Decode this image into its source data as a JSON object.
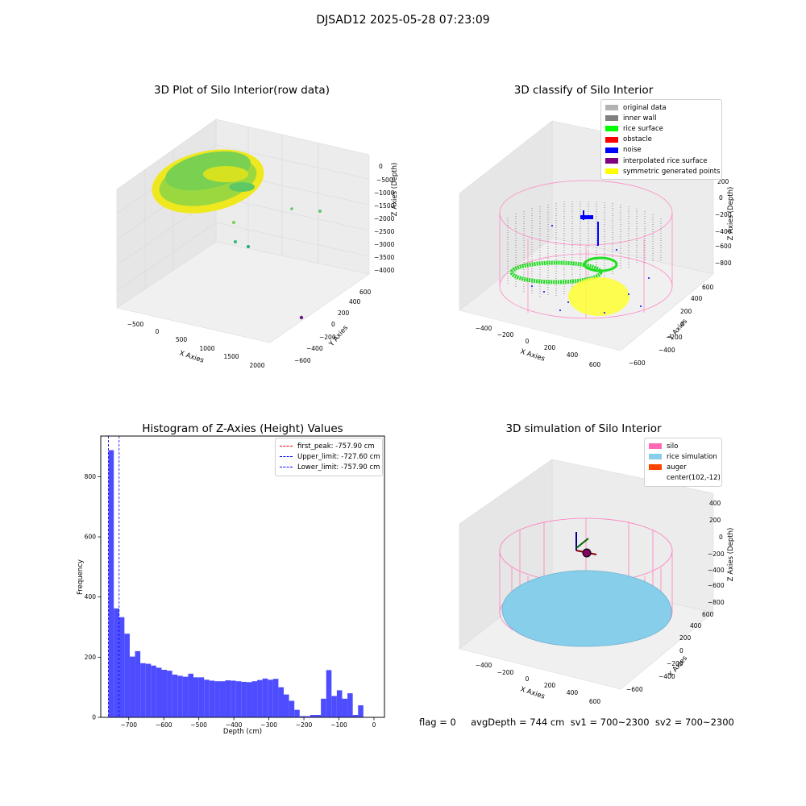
{
  "figure_title": "DJSAD12 2025-05-28 07:23:09",
  "footer": "flag = 0     avgDepth = 744 cm  sv1 = 700~2300  sv2 = 700~2300",
  "colors": {
    "surface_green": "#7ad151",
    "surface_yellow": "#fde725",
    "surface_teal": "#22a884",
    "gray_original": "#b3b3b3",
    "gray_wall": "#808080",
    "rice_surface": "#00ff00",
    "obstacle": "#ff0000",
    "noise": "#0000ff",
    "interpolated": "#800080",
    "symmetric": "#ffff00",
    "hist_bar": "#4d4dff",
    "first_peak": "#ff0000",
    "limit_line": "#0000ff",
    "silo": "#ff69b4",
    "rice_sim": "#87ceeb",
    "auger": "#ff4500"
  },
  "panel1": {
    "title": "3D Plot of Silo Interior(row data)",
    "xlabel": "X Axies",
    "ylabel": "Y Axies",
    "zlabel": "Z Axies (Depth)",
    "xticks": [
      "−500",
      "0",
      "500",
      "1000",
      "1500",
      "2000"
    ],
    "yticks": [
      "−600",
      "−400",
      "−200",
      "0",
      "200",
      "400",
      "600"
    ],
    "zticks": [
      "0",
      "−500",
      "−1000",
      "−1500",
      "−2000",
      "−2500",
      "−3000",
      "−3500",
      "−4000"
    ]
  },
  "panel2": {
    "title": "3D classify of Silo Interior",
    "xlabel": "X Axies",
    "ylabel": "Y Axies",
    "zlabel": "Z Axies (Depth)",
    "xticks": [
      "−400",
      "−200",
      "0",
      "200",
      "400",
      "600"
    ],
    "yticks": [
      "−600",
      "−400",
      "−200",
      "0",
      "200",
      "400",
      "600"
    ],
    "zticks": [
      "200",
      "0",
      "−200",
      "−400",
      "−600",
      "−800"
    ],
    "legend": [
      {
        "label": "original data",
        "color": "#b3b3b3"
      },
      {
        "label": "inner wall",
        "color": "#808080"
      },
      {
        "label": "rice surface",
        "color": "#00ff00"
      },
      {
        "label": "obstacle",
        "color": "#ff0000"
      },
      {
        "label": "noise",
        "color": "#0000ff"
      },
      {
        "label": "interpolated rice surface",
        "color": "#800080"
      },
      {
        "label": "symmetric generated points",
        "color": "#ffff00"
      }
    ]
  },
  "panel4": {
    "title": "3D simulation of Silo Interior",
    "xlabel": "X Axies",
    "ylabel": "Y Axies",
    "zlabel": "Z Axies (Depth)",
    "xticks": [
      "−400",
      "−200",
      "0",
      "200",
      "400",
      "600"
    ],
    "yticks": [
      "−600",
      "−400",
      "−200",
      "0",
      "200",
      "400",
      "600"
    ],
    "zticks": [
      "400",
      "200",
      "0",
      "−200",
      "−400",
      "−600",
      "−800"
    ],
    "legend": [
      {
        "label": "silo",
        "color": "#ff69b4"
      },
      {
        "label": "rice simulation",
        "color": "#87ceeb"
      },
      {
        "label": "auger",
        "color": "#ff4500"
      },
      {
        "label": "center(102,-12)",
        "color": ""
      }
    ]
  },
  "chart_data": [
    {
      "type": "bar",
      "title": "Histogram of Z-Axies (Height) Values",
      "xlabel": "Depth (cm)",
      "ylabel": "Frequency",
      "xlim": [
        -780,
        30
      ],
      "ylim": [
        0,
        935
      ],
      "xticks": [
        -700,
        -600,
        -500,
        -400,
        -300,
        -200,
        -100,
        0
      ],
      "xtick_labels": [
        "−700",
        "−600",
        "−500",
        "−400",
        "−300",
        "−200",
        "−100",
        "0"
      ],
      "yticks": [
        0,
        200,
        400,
        600,
        800
      ],
      "bin_start": -757.9,
      "bin_width": 15.16,
      "values": [
        888,
        362,
        333,
        278,
        202,
        220,
        180,
        178,
        172,
        165,
        158,
        155,
        142,
        138,
        135,
        145,
        133,
        133,
        125,
        122,
        120,
        120,
        123,
        122,
        120,
        118,
        117,
        120,
        124,
        129,
        125,
        128,
        100,
        76,
        55,
        25,
        4,
        4,
        8,
        8,
        62,
        157,
        71,
        90,
        62,
        80,
        8,
        40
      ],
      "vlines": [
        {
          "label": "first_peak: -757.90 cm",
          "x": -757.9,
          "color": "#ff0000"
        },
        {
          "label": "Upper_limit: -727.60 cm",
          "x": -727.6,
          "color": "#0000ff"
        },
        {
          "label": "Lower_limit: -757.90 cm",
          "x": -757.9,
          "color": "#0000ff"
        }
      ]
    }
  ]
}
